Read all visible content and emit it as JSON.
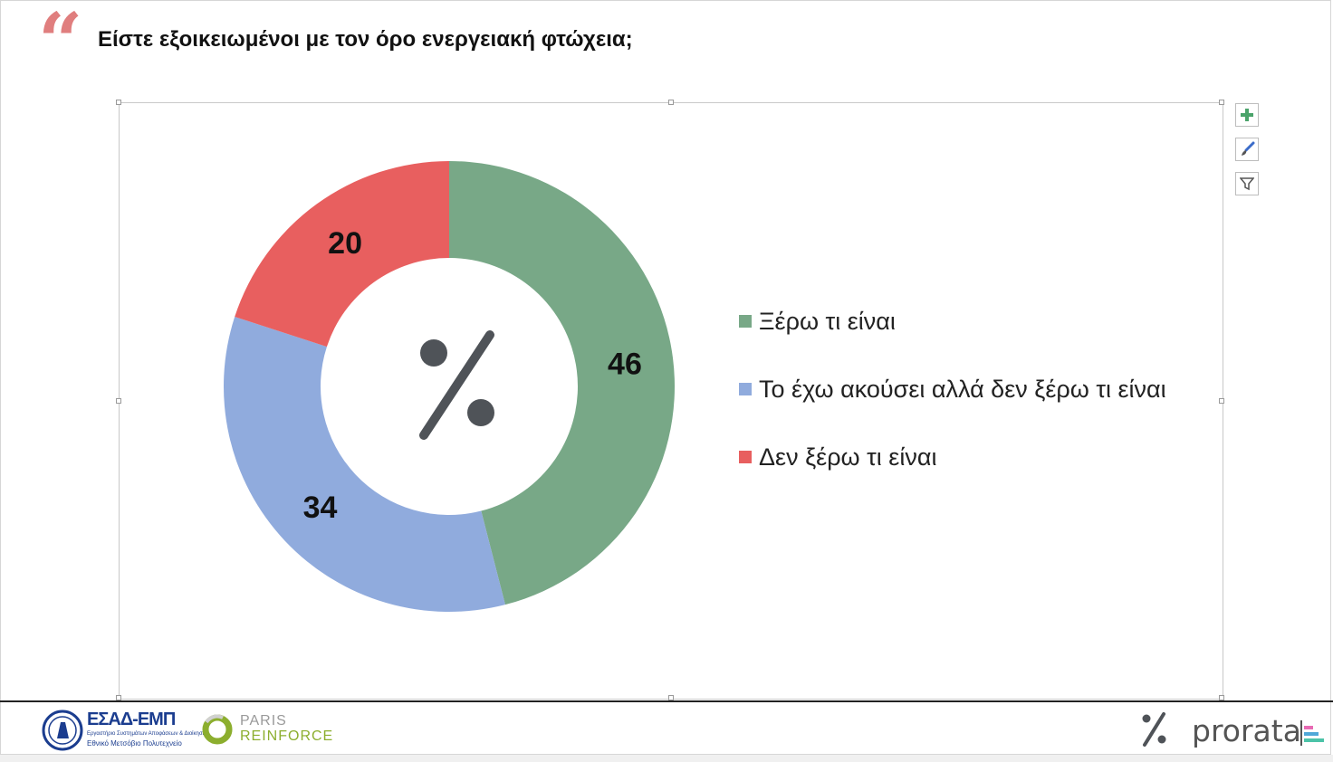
{
  "header": {
    "quote_glyph": "“",
    "question": "Είστε εξοικειωμένοι με τον όρο ενεργειακή φτώχεια;"
  },
  "chart_data": {
    "type": "pie",
    "variant": "donut",
    "title": "",
    "categories": [
      "Ξέρω τι είναι",
      "Το έχω ακούσει αλλά δεν ξέρω τι είναι",
      "Δεν ξέρω τι είναι"
    ],
    "values": [
      46,
      34,
      20
    ],
    "data_labels": [
      "46",
      "34",
      "20"
    ],
    "colors": [
      "#78a887",
      "#90abdd",
      "#e85f5f"
    ],
    "legend_position": "right",
    "center_icon": "percent-icon"
  },
  "chart_tools": {
    "buttons": [
      "plus-icon",
      "brush-icon",
      "filter-icon"
    ]
  },
  "footer": {
    "esad": {
      "title": "ΕΣΑΔ-ΕΜΠ",
      "subtitle": "Εργαστήριο Συστημάτων Αποφάσεων & Διοίκησης",
      "university": "Εθνικό Μετσόβιο Πολυτεχνείο"
    },
    "paris": {
      "top": "PARIS",
      "bottom": "REINFORCE"
    },
    "prorata": {
      "text": "prorata",
      "accent_colors": [
        "#e86bb4",
        "#4fa8d8",
        "#4cc3a8"
      ]
    }
  }
}
